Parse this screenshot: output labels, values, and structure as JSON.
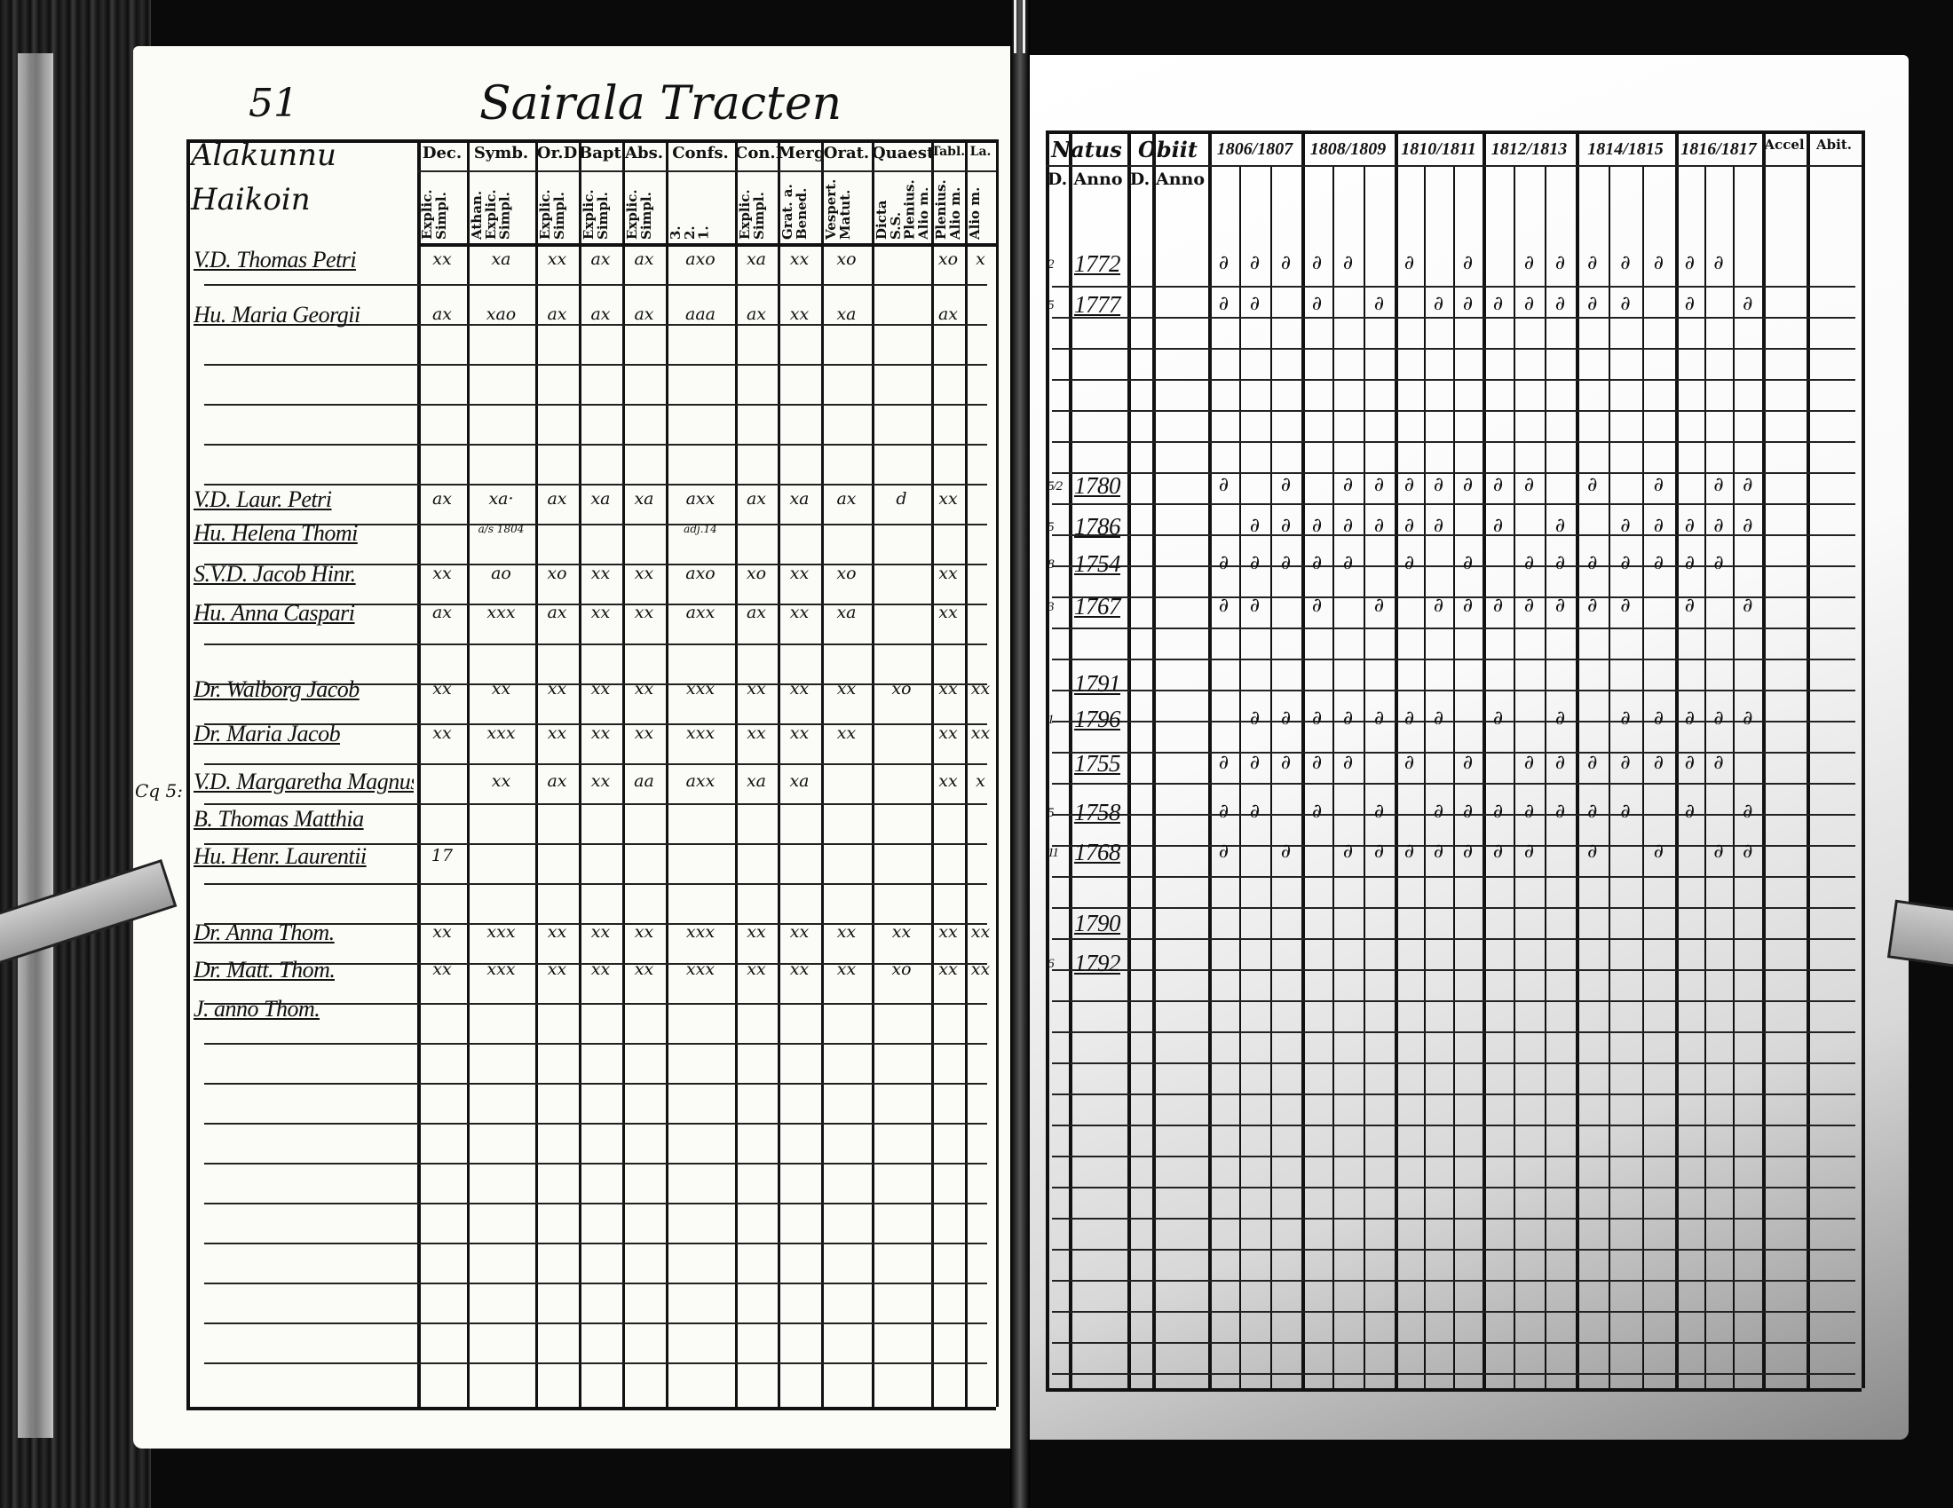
{
  "left_page": {
    "page_number": "51",
    "title": "Sairala Tracten",
    "margin_note": "Cq 5:",
    "name_header": [
      "Alakunnu",
      "Haikoin"
    ],
    "columns": [
      {
        "label": "Dec.",
        "sub": "Explic.\nSimpl."
      },
      {
        "label": "Symb.",
        "sub": "Athan.\nExplic.\nSimpl."
      },
      {
        "label": "Or.D",
        "sub": "Explic.\nSimpl."
      },
      {
        "label": "Bapt.",
        "sub": "Explic.\nSimpl."
      },
      {
        "label": "Abs.",
        "sub": "Explic.\nSimpl."
      },
      {
        "label": "Confs.",
        "sub": "3.\n2.\n1."
      },
      {
        "label": "Con.D",
        "sub": "Explic.\nSimpl."
      },
      {
        "label": "Merg.",
        "sub": "Grat. a.\nBened."
      },
      {
        "label": "Orat.",
        "sub": "Vespert.\nMatut."
      },
      {
        "label": "Quaest.",
        "sub": "Dicta S.S.\nPlenius.\nAlio m."
      },
      {
        "label": "Tabl.",
        "sub": "Plenius.\nAlio m."
      },
      {
        "label": "La.",
        "sub": "Alio m."
      }
    ],
    "rows": [
      {
        "name": "V.D. Thomas Petri",
        "marks": [
          "xx",
          "xa",
          "xx",
          "ax",
          "ax",
          "axo",
          "xa",
          "xx",
          "xo",
          "",
          "xo",
          "x"
        ]
      },
      {
        "name": "Hu. Maria Georgii",
        "marks": [
          "ax",
          "xao",
          "ax",
          "ax",
          "ax",
          "aaa",
          "ax",
          "xx",
          "xa",
          "",
          "ax",
          ""
        ]
      },
      {
        "name": "V.D. Laur. Petri",
        "marks": [
          "ax",
          "xa·",
          "ax",
          "xa",
          "xa",
          "axx",
          "ax",
          "xa",
          "ax",
          "d",
          "xx",
          ""
        ]
      },
      {
        "name": "Hu. Helena Thomi",
        "marks": [
          "",
          "a/s 1804",
          "",
          "",
          "",
          "adj.14",
          "",
          "",
          "",
          "",
          "",
          ""
        ]
      },
      {
        "name": "S.V.D. Jacob Hinr.",
        "marks": [
          "xx",
          "ao",
          "xo",
          "xx",
          "xx",
          "axo",
          "xo",
          "xx",
          "xo",
          "",
          "xx",
          ""
        ]
      },
      {
        "name": "Hu. Anna Caspari",
        "marks": [
          "ax",
          "xxx",
          "ax",
          "xx",
          "xx",
          "axx",
          "ax",
          "xx",
          "xa",
          "",
          "xx",
          ""
        ]
      },
      {
        "name": "Dr. Walborg Jacob",
        "marks": [
          "xx",
          "xx",
          "xx",
          "xx",
          "xx",
          "xxx",
          "xx",
          "xx",
          "xx",
          "xo",
          "xx",
          "xx"
        ]
      },
      {
        "name": "Dr. Maria Jacob",
        "marks": [
          "xx",
          "xxx",
          "xx",
          "xx",
          "xx",
          "xxx",
          "xx",
          "xx",
          "xx",
          "",
          "xx",
          "xx"
        ]
      },
      {
        "name": "V.D. Margaretha Magnus",
        "marks": [
          "",
          "xx",
          "ax",
          "xx",
          "aa",
          "axx",
          "xa",
          "xa",
          "",
          "",
          "xx",
          "x"
        ]
      },
      {
        "name": "B. Thomas Matthia",
        "marks": [
          "",
          "",
          "",
          "",
          "",
          "",
          "",
          "",
          "",
          "",
          "",
          ""
        ]
      },
      {
        "name": "Hu. Henr. Laurentii",
        "marks": [
          "17",
          "",
          "",
          "",
          "",
          "",
          "",
          "",
          "",
          "",
          "",
          ""
        ]
      },
      {
        "name": "Dr. Anna Thom.",
        "marks": [
          "xx",
          "xxx",
          "xx",
          "xx",
          "xx",
          "xxx",
          "xx",
          "xx",
          "xx",
          "xx",
          "xx",
          "xx"
        ]
      },
      {
        "name": "Dr. Matt. Thom.",
        "marks": [
          "xx",
          "xxx",
          "xx",
          "xx",
          "xx",
          "xxx",
          "xx",
          "xx",
          "xx",
          "xo",
          "xx",
          "xx"
        ]
      },
      {
        "name": "J. anno Thom.",
        "marks": [
          "",
          "",
          "",
          "",
          "",
          "",
          "",
          "",
          "",
          "",
          "",
          ""
        ]
      }
    ]
  },
  "right_page": {
    "natus": {
      "label": "Natus",
      "day": "D.",
      "year": "Anno"
    },
    "obiit": {
      "label": "Obiit",
      "day": "D.",
      "year": "Anno"
    },
    "year_groups": [
      "1806/1807",
      "1808/1809",
      "1810/1811",
      "1812/1813",
      "1814/1815",
      "1816/1817"
    ],
    "accel": "Accel",
    "abit": "Abit.",
    "rows": [
      {
        "day": "2",
        "year": "1772"
      },
      {
        "day": "5",
        "year": "1777"
      },
      {
        "day": "5/2",
        "year": "1780"
      },
      {
        "day": "5",
        "year": "1786"
      },
      {
        "day": "8",
        "year": "1754"
      },
      {
        "day": "3",
        "year": "1767"
      },
      {
        "day": "",
        "year": "1791"
      },
      {
        "day": "1",
        "year": "1796"
      },
      {
        "day": "",
        "year": "1755"
      },
      {
        "day": "5",
        "year": "1758"
      },
      {
        "day": "11",
        "year": "1768"
      },
      {
        "day": "",
        "year": "1790"
      },
      {
        "day": "6",
        "year": "1792"
      }
    ],
    "tally_mark": "∂"
  }
}
